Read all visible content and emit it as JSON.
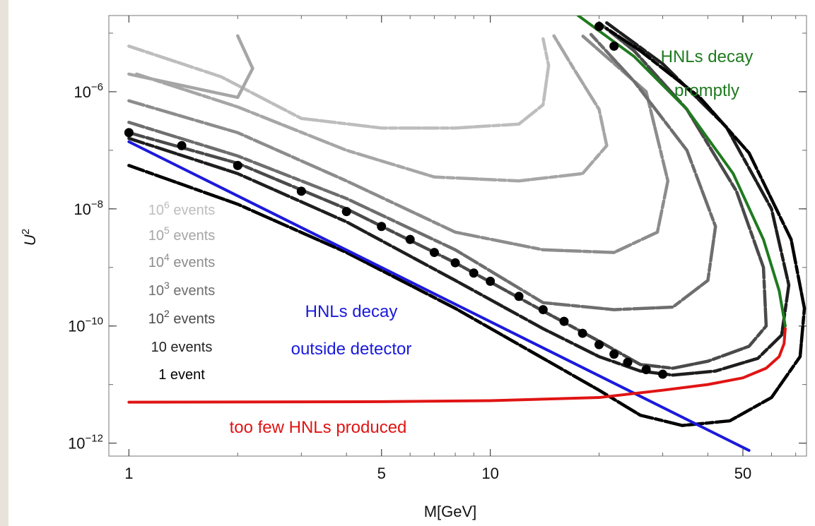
{
  "chart_data": {
    "type": "line",
    "xscale": "log",
    "yscale": "log",
    "xlim": [
      0.88,
      75
    ],
    "ylim": [
      6e-13,
      2e-05
    ],
    "xlabel": "M[GeV]",
    "ylabel": "U",
    "ylabel_sup": "2",
    "x_ticks": [
      {
        "value": 1,
        "label": "1"
      },
      {
        "value": 5,
        "label": "5"
      },
      {
        "value": 10,
        "label": "10"
      },
      {
        "value": 50,
        "label": "50"
      }
    ],
    "y_ticks": [
      {
        "value": 1e-06,
        "base": "10",
        "exp": "−6"
      },
      {
        "value": 1e-08,
        "base": "10",
        "exp": "−8"
      },
      {
        "value": 1e-10,
        "base": "10",
        "exp": "−10"
      },
      {
        "value": 1e-12,
        "base": "10",
        "exp": "−12"
      }
    ],
    "legend": [
      {
        "base": "10",
        "exp": "6",
        "text": " events",
        "color": "#bdbdbd"
      },
      {
        "base": "10",
        "exp": "5",
        "text": " events",
        "color": "#a6a6a6"
      },
      {
        "base": "10",
        "exp": "4",
        "text": " events",
        "color": "#8c8c8c"
      },
      {
        "base": "10",
        "exp": "3",
        "text": " events",
        "color": "#6e6e6e"
      },
      {
        "base": "10",
        "exp": "2",
        "text": " events",
        "color": "#4a4a4a"
      },
      {
        "base": "",
        "exp": "",
        "text": "10 events",
        "color": "#222222"
      },
      {
        "base": "",
        "exp": "",
        "text": "1 event",
        "color": "#000000"
      }
    ],
    "annotations": {
      "prompt": {
        "lines": [
          "HNLs decay",
          "promptly"
        ],
        "color": "#1f7a1f"
      },
      "outside": {
        "lines": [
          "HNLs decay",
          "outside detector"
        ],
        "color": "#1a1adb"
      },
      "toofew": {
        "lines": [
          "too few HNLs produced"
        ],
        "color": "#e01414"
      }
    },
    "series": [
      {
        "key": "e6",
        "color": "#bdbdbd",
        "dotted_bottom": true,
        "points": [
          [
            1.0,
            6e-06
          ],
          [
            1.8,
            1.8e-06
          ],
          [
            3.0,
            3.5e-07
          ],
          [
            5.0,
            2.4e-07
          ],
          [
            8.0,
            2.4e-07
          ],
          [
            12.0,
            2.8e-07
          ],
          [
            14.0,
            6e-07
          ],
          [
            14.5,
            2.8e-06
          ],
          [
            14.0,
            8e-06
          ]
        ]
      },
      {
        "key": "e5",
        "color": "#a6a6a6",
        "dotted_bottom": false,
        "points": [
          [
            1.0,
            2e-06
          ],
          [
            2.0,
            8e-07
          ],
          [
            2.2,
            2.5e-06
          ],
          [
            2.0,
            9e-06
          ]
        ]
      },
      {
        "key": "e5b",
        "color": "#a6a6a6",
        "dotted_bottom": true,
        "points": [
          [
            1.05,
            2e-06
          ],
          [
            2.0,
            5.5e-07
          ],
          [
            4.0,
            1e-07
          ],
          [
            7.0,
            3.5e-08
          ],
          [
            12.0,
            3e-08
          ],
          [
            18.0,
            4e-08
          ],
          [
            21.0,
            1.2e-07
          ],
          [
            20.0,
            5e-07
          ],
          [
            17.0,
            2.5e-06
          ],
          [
            15.0,
            9e-06
          ]
        ]
      },
      {
        "key": "e4",
        "color": "#8c8c8c",
        "dotted_bottom": true,
        "points": [
          [
            1.0,
            7e-07
          ],
          [
            2.0,
            2e-07
          ],
          [
            4.0,
            3e-08
          ],
          [
            8.0,
            4e-09
          ],
          [
            14.0,
            2e-09
          ],
          [
            22.0,
            1.8e-09
          ],
          [
            29.0,
            4e-09
          ],
          [
            31.0,
            3e-08
          ],
          [
            27.0,
            1e-06
          ],
          [
            18.0,
            9e-06
          ]
        ]
      },
      {
        "key": "e3",
        "color": "#6e6e6e",
        "dotted_bottom": true,
        "points": [
          [
            1.0,
            3e-07
          ],
          [
            2.0,
            8e-08
          ],
          [
            4.0,
            1.5e-08
          ],
          [
            8.0,
            2e-09
          ],
          [
            14.0,
            2.5e-10
          ],
          [
            22.0,
            1.9e-10
          ],
          [
            32.0,
            2.1e-10
          ],
          [
            40.0,
            6e-10
          ],
          [
            42.0,
            5e-09
          ],
          [
            35.0,
            1e-07
          ],
          [
            25.0,
            1.5e-06
          ],
          [
            19.0,
            9.5e-06
          ]
        ]
      },
      {
        "key": "e2",
        "color": "#4a4a4a",
        "dotted_bottom": true,
        "points": [
          [
            1.0,
            2e-07
          ],
          [
            2.0,
            6e-08
          ],
          [
            4.0,
            1e-08
          ],
          [
            8.0,
            1.2e-09
          ],
          [
            14.0,
            1.8e-10
          ],
          [
            20.0,
            5.5e-11
          ],
          [
            26.0,
            2.2e-11
          ],
          [
            32.0,
            1.9e-11
          ],
          [
            40.0,
            2.5e-11
          ],
          [
            52.0,
            4.5e-11
          ],
          [
            58.0,
            1e-10
          ],
          [
            57.0,
            1e-09
          ],
          [
            48.0,
            2e-08
          ],
          [
            35.0,
            5e-07
          ],
          [
            25.0,
            5e-06
          ],
          [
            20.0,
            1.5e-05
          ]
        ]
      },
      {
        "key": "e10",
        "color": "#1e1e1e",
        "dotted_bottom": true,
        "points": [
          [
            1.0,
            1.6e-07
          ],
          [
            2.0,
            4e-08
          ],
          [
            4.0,
            6e-09
          ],
          [
            8.0,
            6e-10
          ],
          [
            14.0,
            9e-11
          ],
          [
            20.0,
            3e-11
          ],
          [
            26.0,
            1.7e-11
          ],
          [
            32.0,
            1.45e-11
          ],
          [
            42.0,
            1.7e-11
          ],
          [
            55.0,
            2.8e-11
          ],
          [
            64.0,
            7e-11
          ],
          [
            67.0,
            5e-10
          ],
          [
            60.0,
            1e-08
          ],
          [
            45.0,
            2.5e-07
          ],
          [
            30.0,
            3e-06
          ],
          [
            21.0,
            1.5e-05
          ]
        ]
      },
      {
        "key": "e1",
        "color": "#000000",
        "dotted_bottom": true,
        "points": [
          [
            1.0,
            5.5e-08
          ],
          [
            2.0,
            1.2e-08
          ],
          [
            4.0,
            1.8e-09
          ],
          [
            8.0,
            2e-10
          ],
          [
            14.0,
            2.8e-11
          ],
          [
            20.0,
            8e-12
          ],
          [
            26.0,
            3e-12
          ],
          [
            34.0,
            2e-12
          ],
          [
            46.0,
            2.4e-12
          ],
          [
            60.0,
            6e-12
          ],
          [
            72.0,
            3e-11
          ],
          [
            74.0,
            2e-10
          ],
          [
            68.0,
            3e-09
          ],
          [
            52.0,
            9e-08
          ],
          [
            38.0,
            8e-07
          ],
          [
            26.0,
            5e-06
          ],
          [
            21.0,
            1.2e-05
          ]
        ]
      },
      {
        "key": "blue",
        "color": "#1a1adb",
        "dotted_bottom": false,
        "points": [
          [
            1.0,
            1.4e-07
          ],
          [
            52.0,
            7.5e-13
          ]
        ]
      },
      {
        "key": "red",
        "color": "#e01414",
        "dotted_bottom": false,
        "points": [
          [
            1.0,
            5e-12
          ],
          [
            5.0,
            5.1e-12
          ],
          [
            10.0,
            5.3e-12
          ],
          [
            20.0,
            6e-12
          ],
          [
            30.0,
            8e-12
          ],
          [
            40.0,
            1e-11
          ],
          [
            50.0,
            1.3e-11
          ],
          [
            58.0,
            1.9e-11
          ],
          [
            63.0,
            3e-11
          ],
          [
            65.0,
            5e-11
          ],
          [
            65.5,
            9e-11
          ]
        ]
      },
      {
        "key": "green",
        "color": "#1f7a1f",
        "dotted_bottom": false,
        "points": [
          [
            17.5,
            2e-05
          ],
          [
            25.0,
            4e-06
          ],
          [
            35.0,
            5e-07
          ],
          [
            47.0,
            4e-08
          ],
          [
            57.0,
            3e-09
          ],
          [
            63.0,
            4e-10
          ],
          [
            65.5,
            1e-10
          ]
        ]
      },
      {
        "key": "big-dots",
        "color": "#000000",
        "dotted_bottom": false,
        "points": [
          [
            1.0,
            2e-07
          ],
          [
            1.4,
            1.2e-07
          ],
          [
            2.0,
            5.5e-08
          ],
          [
            3.0,
            2e-08
          ],
          [
            4.0,
            9e-09
          ],
          [
            5.0,
            5e-09
          ],
          [
            6.0,
            3e-09
          ],
          [
            7.0,
            1.8e-09
          ],
          [
            8.0,
            1.2e-09
          ],
          [
            9.0,
            8e-10
          ],
          [
            10.0,
            5.8e-10
          ],
          [
            12.0,
            3.2e-10
          ],
          [
            14.0,
            1.9e-10
          ],
          [
            16.0,
            1.2e-10
          ],
          [
            18.0,
            7.5e-11
          ],
          [
            20.0,
            4.8e-11
          ],
          [
            22.0,
            3.3e-11
          ],
          [
            24.0,
            2.4e-11
          ],
          [
            27.0,
            1.8e-11
          ],
          [
            30.0,
            1.5e-11
          ],
          [
            20.0,
            1.3e-05
          ],
          [
            22.0,
            6e-06
          ]
        ]
      }
    ]
  }
}
